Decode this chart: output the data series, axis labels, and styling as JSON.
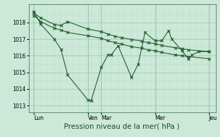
{
  "bg_color": "#cce8d8",
  "line_color": "#1a5c28",
  "grid_color_minor": "#b8d8c8",
  "grid_color_major": "#9ac8b0",
  "xlabel": "Pression niveau de la mer( hPa )",
  "xlabel_fontsize": 7.5,
  "yticks": [
    1013,
    1014,
    1015,
    1016,
    1017,
    1018
  ],
  "ylim": [
    1012.6,
    1019.1
  ],
  "xlim": [
    -0.3,
    27.5
  ],
  "xtick_labels": [
    "Lun",
    "Ven",
    "Mar",
    "Mer",
    "Jeu"
  ],
  "xtick_positions": [
    0.5,
    8.5,
    10.5,
    18.5,
    26.5
  ],
  "vlines": [
    0.5,
    8.5,
    10.5,
    18.5,
    26.5
  ],
  "series1_x": [
    0.5,
    1.5,
    3.5,
    4.5,
    5.5,
    8.5,
    9.0,
    10.5,
    11.5,
    12.0,
    13.0,
    15.0,
    16.0,
    17.0,
    18.5,
    19.5,
    20.5,
    21.0,
    22.5,
    23.5,
    24.0,
    25.0,
    26.5
  ],
  "series1_y": [
    1018.65,
    1017.9,
    1017.0,
    1016.4,
    1014.85,
    1013.35,
    1013.3,
    1015.3,
    1016.05,
    1016.05,
    1016.6,
    1014.7,
    1015.5,
    1017.4,
    1016.9,
    1016.9,
    1017.5,
    1017.0,
    1016.3,
    1015.8,
    1016.05,
    1016.25,
    1016.25
  ],
  "series2_x": [
    0.5,
    1.5,
    3.5,
    4.5,
    5.5,
    8.5,
    10.5,
    11.5,
    12.5,
    13.5,
    15.0,
    16.5,
    17.5,
    18.5,
    19.5,
    21.5,
    22.5,
    23.5,
    26.5
  ],
  "series2_y": [
    1018.55,
    1018.28,
    1017.88,
    1017.82,
    1018.05,
    1017.6,
    1017.45,
    1017.3,
    1017.18,
    1017.08,
    1016.98,
    1016.88,
    1016.78,
    1016.72,
    1016.62,
    1016.48,
    1016.42,
    1016.35,
    1016.25
  ],
  "series3_x": [
    0.5,
    1.5,
    3.5,
    4.5,
    5.5,
    8.5,
    10.5,
    11.5,
    12.5,
    13.5,
    15.0,
    16.5,
    17.5,
    18.5,
    19.5,
    21.5,
    22.5,
    23.5,
    26.5
  ],
  "series3_y": [
    1018.42,
    1018.05,
    1017.65,
    1017.55,
    1017.4,
    1017.2,
    1017.05,
    1016.9,
    1016.8,
    1016.7,
    1016.55,
    1016.45,
    1016.35,
    1016.3,
    1016.2,
    1016.05,
    1016.0,
    1015.95,
    1015.82
  ]
}
